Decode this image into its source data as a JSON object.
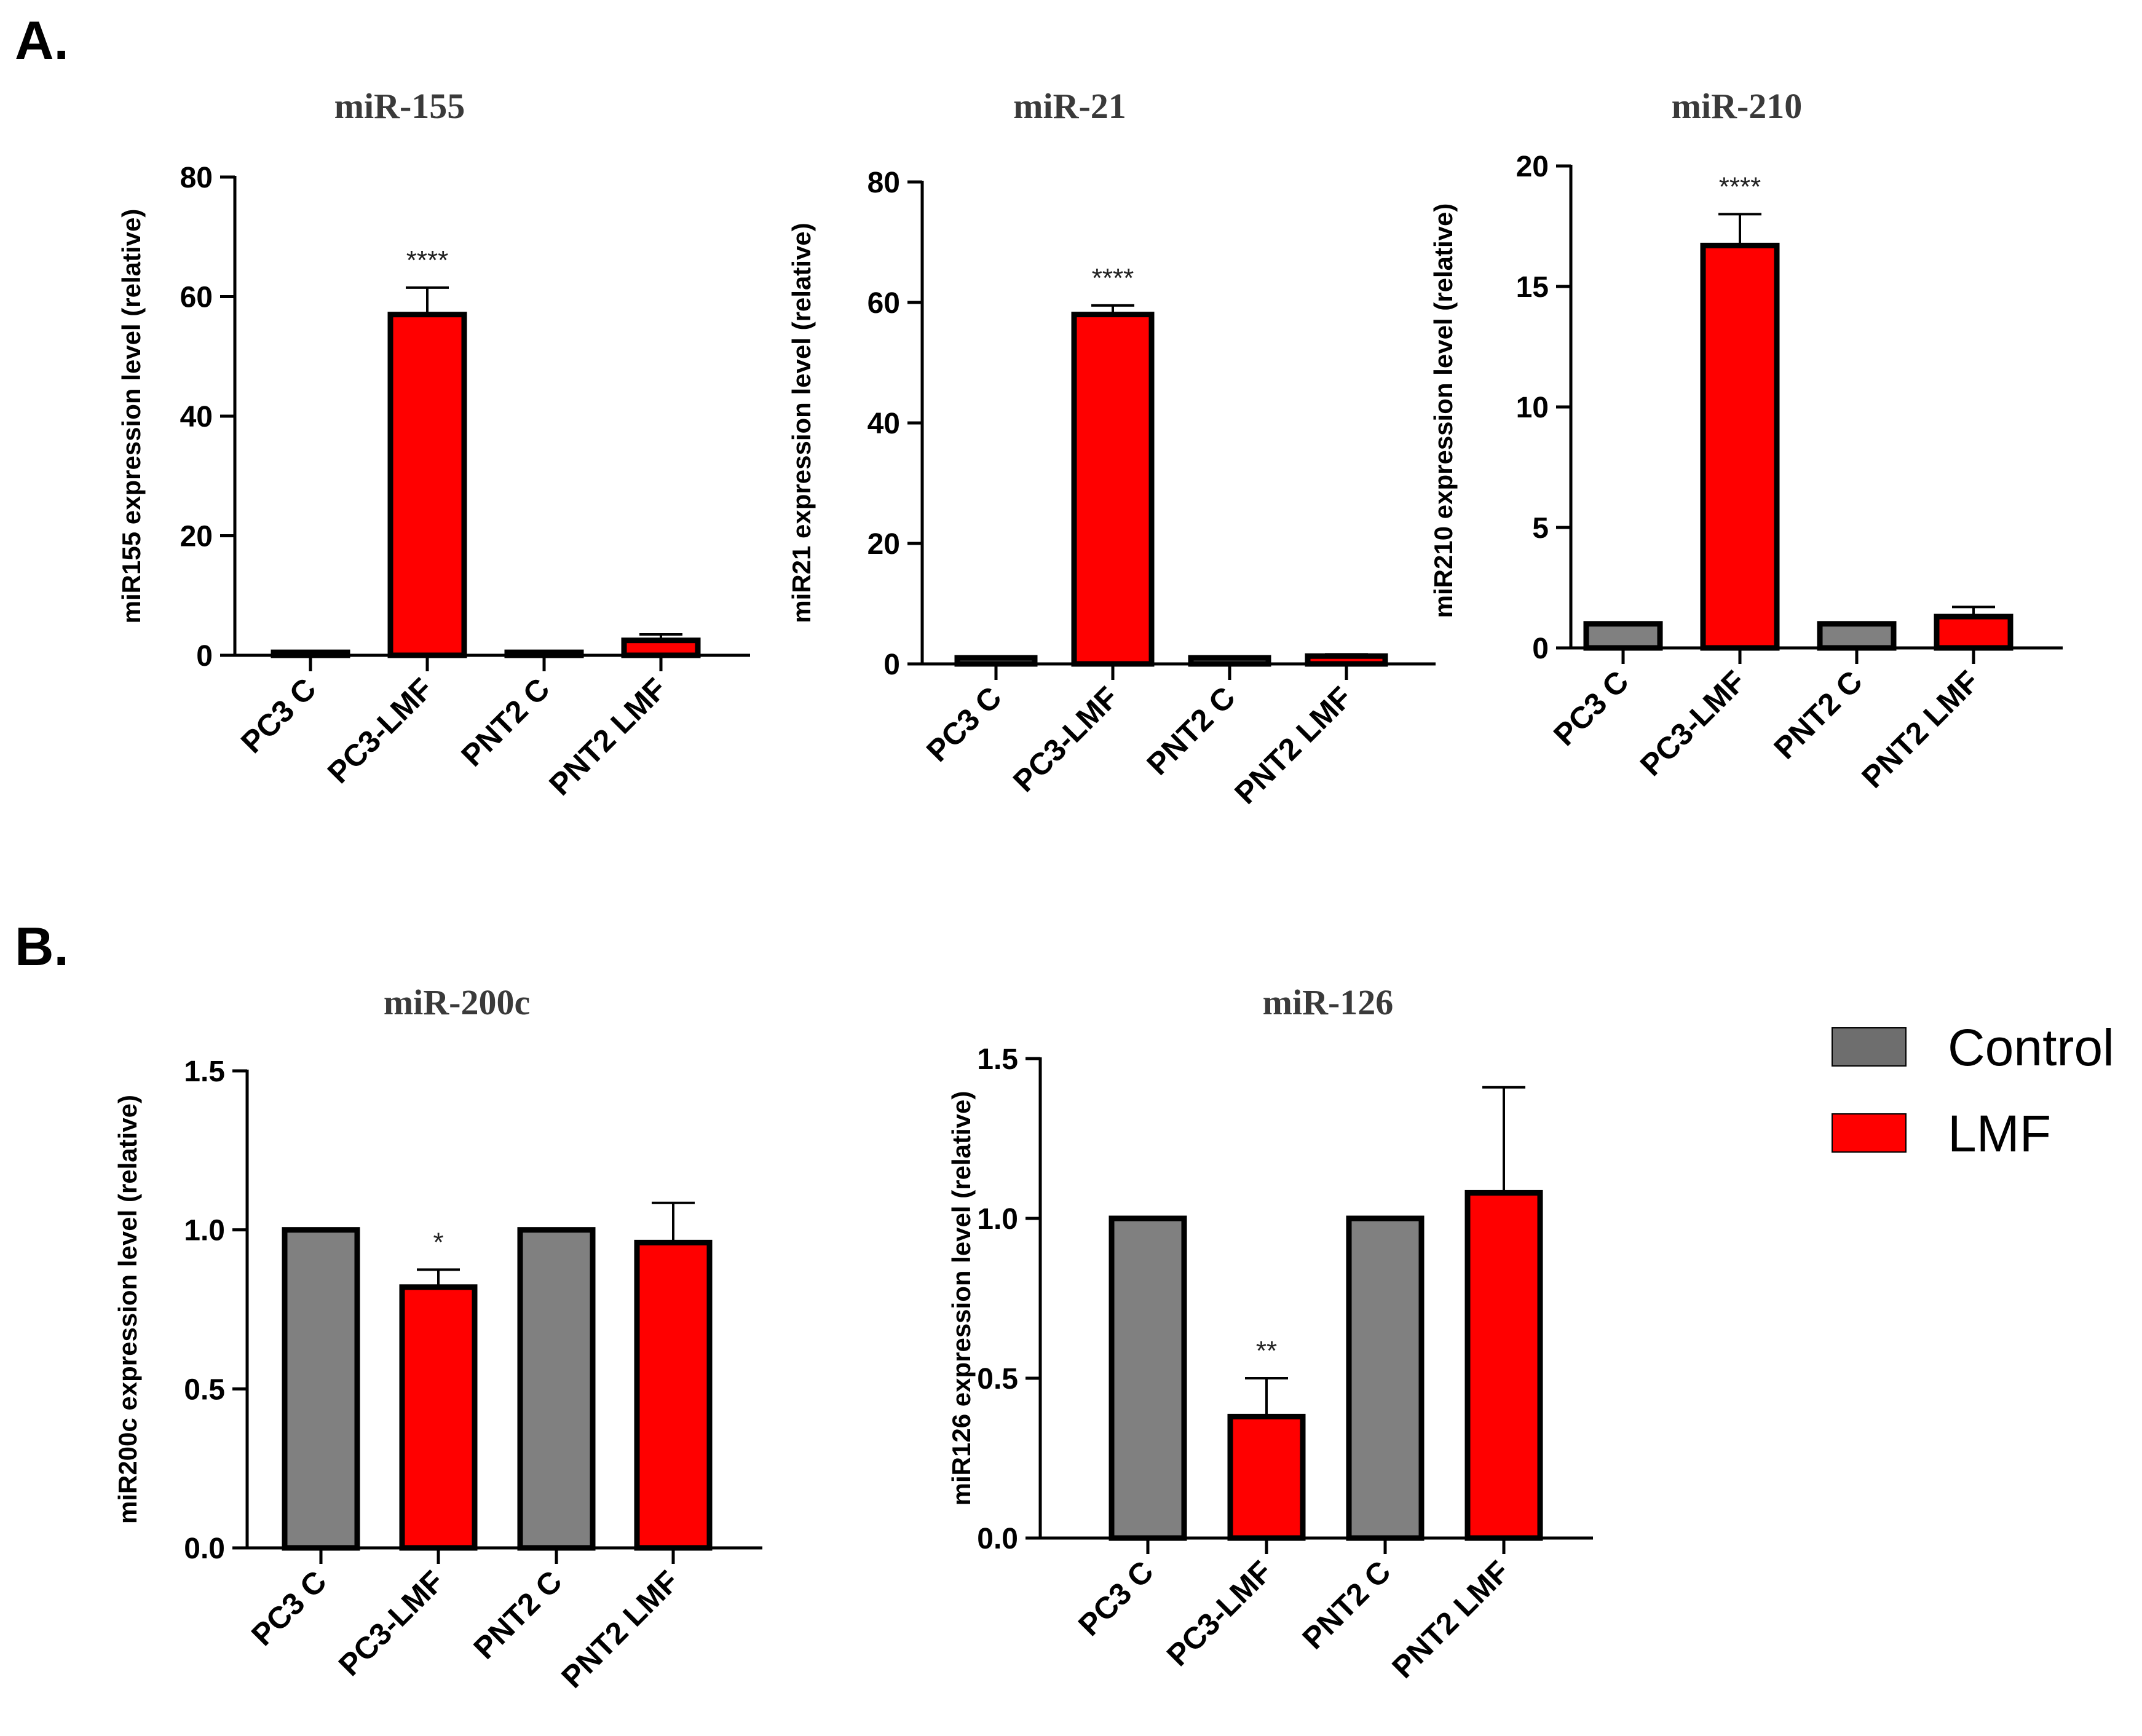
{
  "panels": {
    "a": "A.",
    "b": "B."
  },
  "colors": {
    "control": "#808080",
    "lmf": "#ff0000",
    "control_legend": "#6e6e6e"
  },
  "legend": {
    "items": [
      {
        "label": "Control",
        "color": "#6e6e6e"
      },
      {
        "label": "LMF",
        "color": "#ff0000"
      }
    ]
  },
  "chart_data": [
    {
      "type": "bar",
      "title": "miR-155",
      "ylabel": "miR155 expression level (relative)",
      "ylim": [
        0,
        80
      ],
      "yticks": [
        0,
        20,
        40,
        60,
        80
      ],
      "yticklabels": [
        "0",
        "20",
        "40",
        "60",
        "80"
      ],
      "categories": [
        "PC3 C",
        "PC3-LMF",
        "PNT2 C",
        "PNT2 LMF"
      ],
      "groups": [
        "control",
        "lmf",
        "control",
        "lmf"
      ],
      "values": [
        0.5,
        57,
        0.5,
        2.5
      ],
      "errors": [
        0,
        4.5,
        0,
        1.0
      ],
      "significance": [
        "",
        "****",
        "",
        ""
      ]
    },
    {
      "type": "bar",
      "title": "miR-21",
      "ylabel": "miR21 expression level (relative)",
      "ylim": [
        0,
        80
      ],
      "yticks": [
        0,
        20,
        40,
        60,
        80
      ],
      "yticklabels": [
        "0",
        "20",
        "40",
        "60",
        "80"
      ],
      "categories": [
        "PC3 C",
        "PC3-LMF",
        "PNT2 C",
        "PNT2 LMF"
      ],
      "groups": [
        "control",
        "lmf",
        "control",
        "lmf"
      ],
      "values": [
        1,
        58,
        1,
        1.3
      ],
      "errors": [
        0,
        1.5,
        0,
        0.3
      ],
      "significance": [
        "",
        "****",
        "",
        ""
      ]
    },
    {
      "type": "bar",
      "title": "miR-210",
      "ylabel": "miR210 expression level (relative)",
      "ylim": [
        0,
        20
      ],
      "yticks": [
        0,
        5,
        10,
        15,
        20
      ],
      "yticklabels": [
        "0",
        "5",
        "10",
        "15",
        "20"
      ],
      "categories": [
        "PC3 C",
        "PC3-LMF",
        "PNT2 C",
        "PNT2 LMF"
      ],
      "groups": [
        "control",
        "lmf",
        "control",
        "lmf"
      ],
      "values": [
        1,
        16.7,
        1,
        1.3
      ],
      "errors": [
        0,
        1.3,
        0,
        0.4
      ],
      "significance": [
        "",
        "****",
        "",
        ""
      ]
    },
    {
      "type": "bar",
      "title": "miR-200c",
      "ylabel": "miR200c expression level (relative)",
      "ylim": [
        0,
        1.5
      ],
      "yticks": [
        0,
        0.5,
        1.0,
        1.5
      ],
      "yticklabels": [
        "0.0",
        "0.5",
        "1.0",
        "1.5"
      ],
      "categories": [
        "PC3 C",
        "PC3-LMF",
        "PNT2 C",
        "PNT2 LMF"
      ],
      "groups": [
        "control",
        "lmf",
        "control",
        "lmf"
      ],
      "values": [
        1.0,
        0.82,
        1.0,
        0.96
      ],
      "errors": [
        0,
        0.055,
        0,
        0.125
      ],
      "significance": [
        "",
        "*",
        "",
        ""
      ]
    },
    {
      "type": "bar",
      "title": "miR-126",
      "ylabel": "miR126 expression level (relative)",
      "ylim": [
        0,
        1.5
      ],
      "yticks": [
        0,
        0.5,
        1.0,
        1.5
      ],
      "yticklabels": [
        "0.0",
        "0.5",
        "1.0",
        "1.5"
      ],
      "categories": [
        "PC3 C",
        "PC3-LMF",
        "PNT2 C",
        "PNT2 LMF"
      ],
      "groups": [
        "control",
        "lmf",
        "control",
        "lmf"
      ],
      "values": [
        1.0,
        0.38,
        1.0,
        1.08
      ],
      "errors": [
        0,
        0.12,
        0,
        0.33
      ],
      "significance": [
        "",
        "**",
        "",
        ""
      ]
    }
  ]
}
